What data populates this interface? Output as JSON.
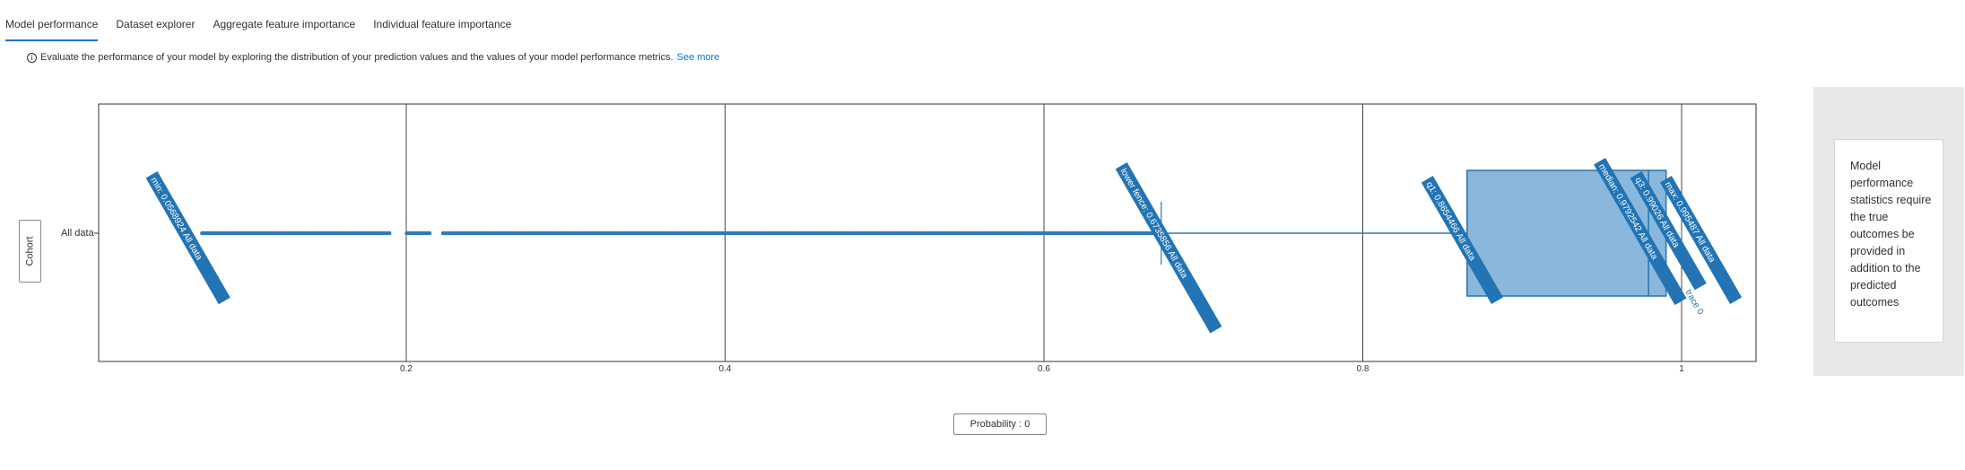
{
  "tabs": [
    {
      "label": "Model performance",
      "active": true
    },
    {
      "label": "Dataset explorer",
      "active": false
    },
    {
      "label": "Aggregate feature importance",
      "active": false
    },
    {
      "label": "Individual feature importance",
      "active": false
    }
  ],
  "info": {
    "icon": "info-icon",
    "text": "Evaluate the performance of your model by exploring the distribution of your prediction values and the values of your model performance metrics.",
    "link": "See more"
  },
  "cohort_button": "Cohort",
  "x_axis_button": "Probability : 0",
  "side_panel": {
    "text": "Model performance statistics require the true outcomes be provided in addition to the predicted outcomes"
  },
  "colors": {
    "accent": "#0078d4",
    "box_fill": "#8ab8dc",
    "box_stroke": "#2c78b5",
    "point": "#2f7ab8",
    "label_bg": "#2274b4"
  },
  "chart_data": {
    "type": "box",
    "orientation": "horizontal",
    "categories": [
      "All data"
    ],
    "xlim": [
      0,
      1.02
    ],
    "xticks": [
      "0.2",
      "0.4",
      "0.6",
      "0.8",
      "1"
    ],
    "xtick_values": [
      0.2,
      0.4,
      0.6,
      0.8,
      1.0
    ],
    "grid": true,
    "summary": {
      "min": 0.0568924,
      "lower_fence": 0.6735856,
      "q1": 0.8654466,
      "median": 0.9792542,
      "q3": 0.99026,
      "max": 0.995487
    },
    "annotations": [
      {
        "text": "min: 0.0568924",
        "series": "All data",
        "at": 0.0568924
      },
      {
        "text": "lower fence: 0.6735856",
        "series": "All data",
        "at": 0.6735856
      },
      {
        "text": "q1: 0.8654466",
        "series": "All data",
        "at": 0.8654466
      },
      {
        "text": "median: 0.9792542",
        "series": "All data",
        "at": 0.9792542
      },
      {
        "text": "q3: 0.99026",
        "series": "All data",
        "at": 0.99026
      },
      {
        "text": "max: 0.995487",
        "series": "All data",
        "at": 0.995487
      },
      {
        "text": "trace 0",
        "series": "",
        "at": 0.997
      }
    ],
    "outlier_range": [
      0.0568924,
      0.6735856
    ],
    "outlier_gaps": [
      [
        0.19,
        0.2
      ],
      [
        0.215,
        0.222
      ]
    ]
  }
}
